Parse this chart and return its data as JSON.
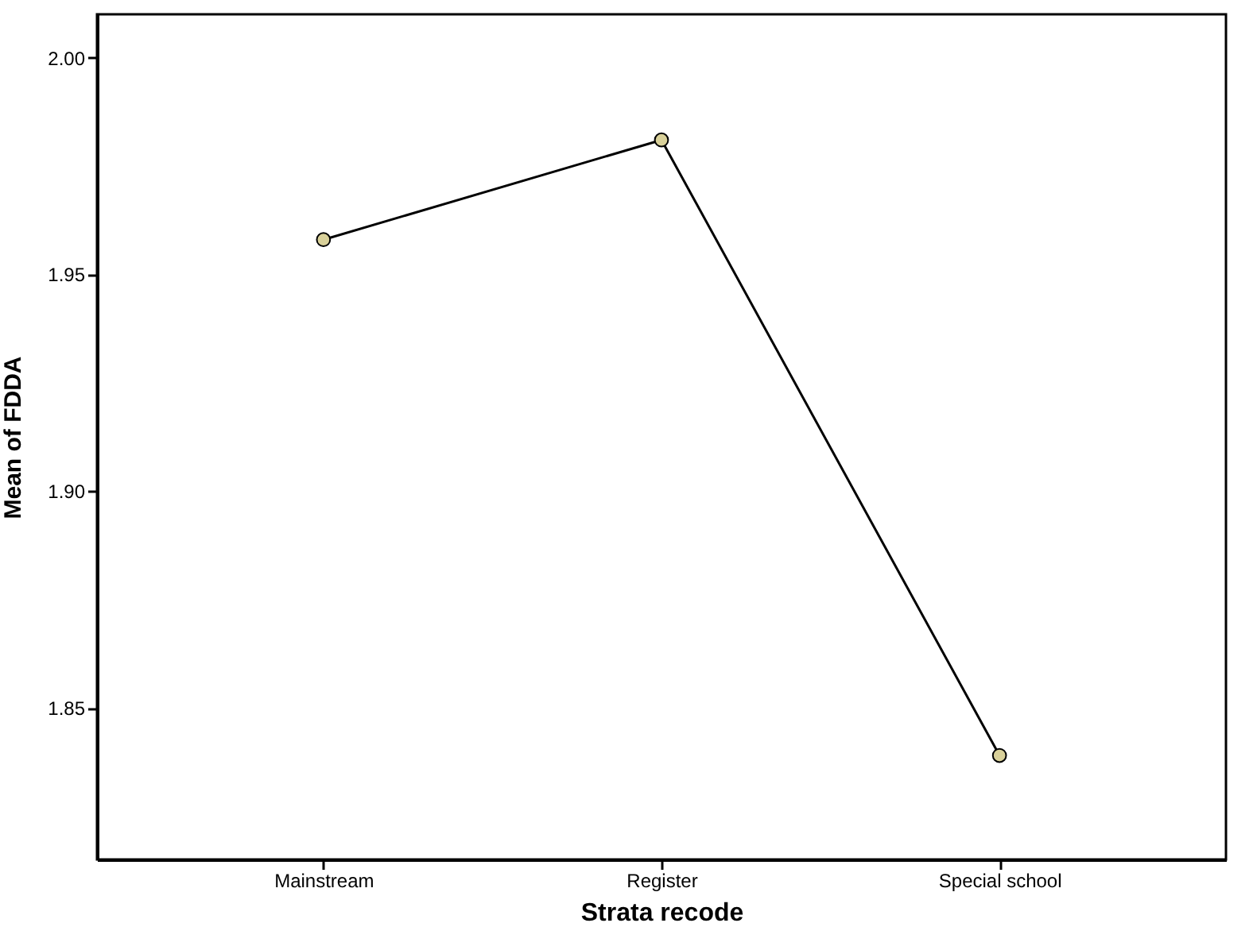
{
  "chart_data": {
    "type": "line",
    "xlabel": "Strata recode",
    "ylabel": "Mean of FDDA",
    "categories": [
      "Mainstream",
      "Register",
      "Special school"
    ],
    "series": [
      {
        "color": "#000000",
        "values": [
          1.958,
          1.981,
          1.839
        ]
      }
    ],
    "ylim": [
      1.815,
      2.01
    ],
    "yticks": [
      {
        "value": 1.85,
        "label": "1.85"
      },
      {
        "value": 1.9,
        "label": "1.90"
      },
      {
        "value": 1.95,
        "label": "1.95"
      },
      {
        "value": 2.0,
        "label": "2.00"
      }
    ],
    "marker": "circle",
    "line_style": "solid",
    "grid": false,
    "legend": false
  }
}
